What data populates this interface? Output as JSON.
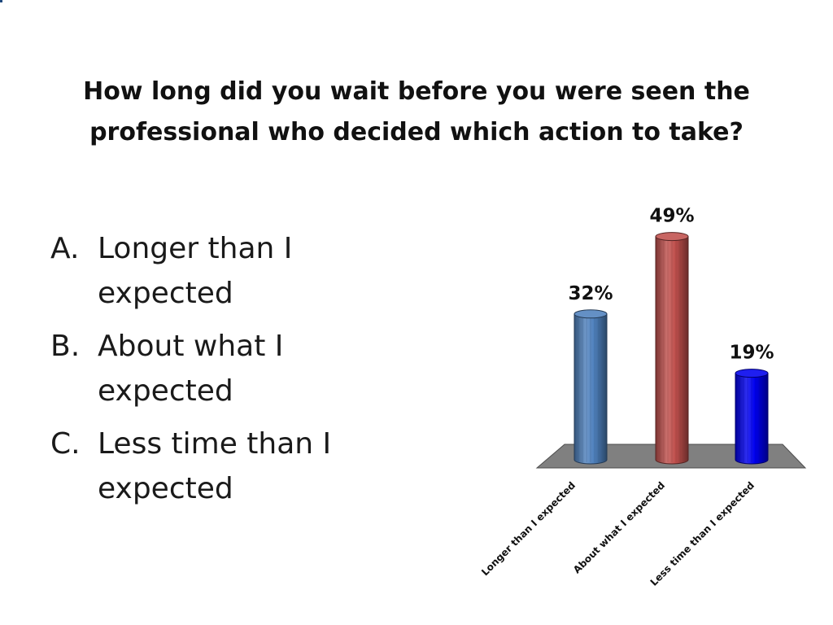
{
  "question": {
    "line1": "How long did you wait before you were seen the",
    "line2": "professional who decided which action to take?"
  },
  "options": [
    {
      "letter": "A.",
      "text": "Longer than I expected"
    },
    {
      "letter": "B.",
      "text": "About what I expected"
    },
    {
      "letter": "C.",
      "text": "Less time than I expected"
    }
  ],
  "colors": {
    "accent": "#1f497d",
    "floor": "#808080",
    "bars": [
      "#4f81bd",
      "#c0504d",
      "#0000ee"
    ]
  },
  "chart_data": {
    "type": "bar",
    "style": "3d-cylinder",
    "categories": [
      "Longer than I expected",
      "About what I expected",
      "Less time than I expected"
    ],
    "values": [
      32,
      49,
      19
    ],
    "value_labels": [
      "32%",
      "49%",
      "19%"
    ],
    "unit": "%",
    "title": "",
    "xlabel": "",
    "ylabel": "",
    "ylim": [
      0,
      50
    ],
    "grid": false,
    "legend": "none"
  }
}
